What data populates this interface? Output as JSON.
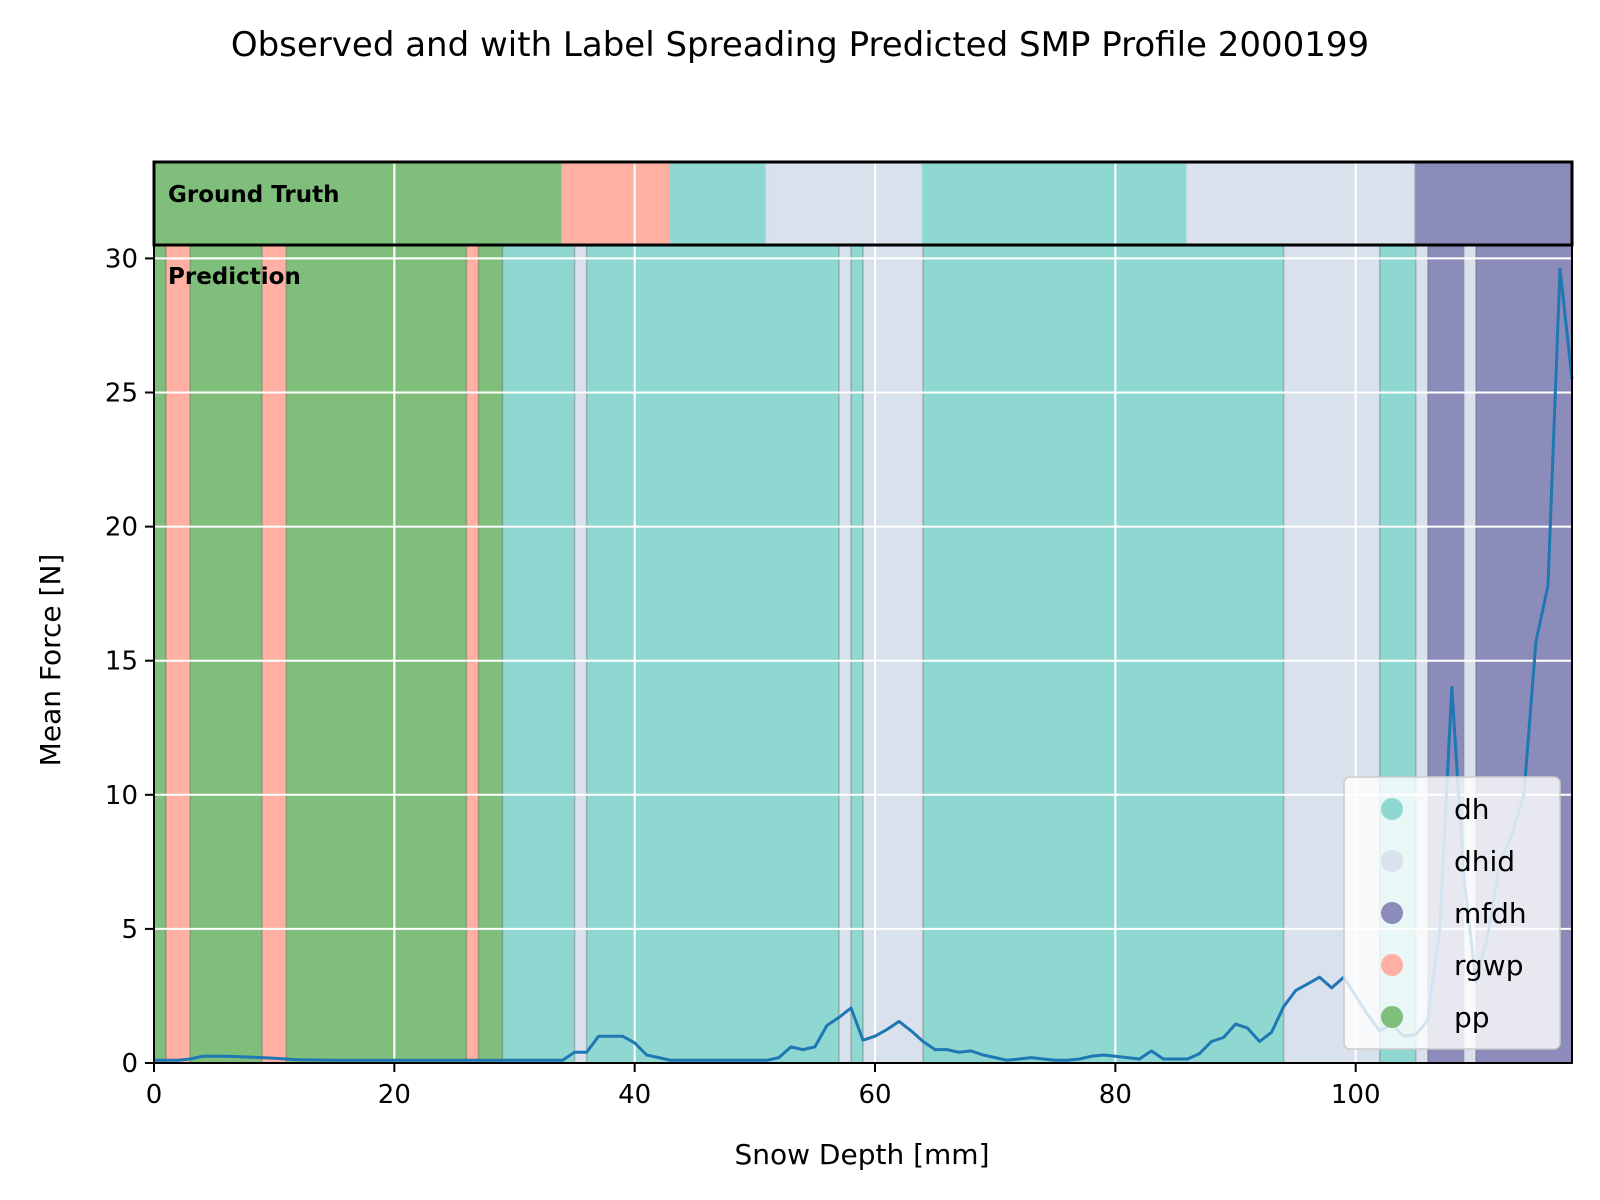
{
  "chart_data": {
    "type": "line",
    "title": "Observed and with Label Spreading Predicted SMP Profile 2000199",
    "xlabel": "Snow Depth [mm]",
    "ylabel": "Mean Force [N]",
    "xlim": [
      0,
      118
    ],
    "ylim": [
      0,
      30.5
    ],
    "xticks": [
      0,
      20,
      40,
      60,
      80,
      100
    ],
    "yticks": [
      0,
      5,
      10,
      15,
      20,
      25,
      30
    ],
    "grid": true,
    "legend_position": "lower-right",
    "classes": [
      {
        "name": "dh",
        "color": "#8fd8d2"
      },
      {
        "name": "dhid",
        "color": "#d9e1ec"
      },
      {
        "name": "mfdh",
        "color": "#8b8cb9"
      },
      {
        "name": "rgwp",
        "color": "#ffb0a3"
      },
      {
        "name": "pp",
        "color": "#7fbf7b"
      }
    ],
    "ground_truth_label": "Ground Truth",
    "prediction_label": "Prediction",
    "ground_truth_segments": [
      {
        "start": 0,
        "end": 34,
        "label": "pp"
      },
      {
        "start": 34,
        "end": 43,
        "label": "rgwp"
      },
      {
        "start": 43,
        "end": 51,
        "label": "dh"
      },
      {
        "start": 51,
        "end": 64,
        "label": "dhid"
      },
      {
        "start": 64,
        "end": 86,
        "label": "dh"
      },
      {
        "start": 86,
        "end": 105,
        "label": "dhid"
      },
      {
        "start": 105,
        "end": 118,
        "label": "mfdh"
      }
    ],
    "prediction_segments": [
      {
        "start": 0,
        "end": 1,
        "label": "pp"
      },
      {
        "start": 1,
        "end": 3,
        "label": "rgwp"
      },
      {
        "start": 3,
        "end": 9,
        "label": "pp"
      },
      {
        "start": 9,
        "end": 11,
        "label": "rgwp"
      },
      {
        "start": 11,
        "end": 26,
        "label": "pp"
      },
      {
        "start": 26,
        "end": 27,
        "label": "rgwp"
      },
      {
        "start": 27,
        "end": 29,
        "label": "pp"
      },
      {
        "start": 29,
        "end": 35,
        "label": "dh"
      },
      {
        "start": 35,
        "end": 36,
        "label": "dhid"
      },
      {
        "start": 36,
        "end": 57,
        "label": "dh"
      },
      {
        "start": 57,
        "end": 58,
        "label": "dhid"
      },
      {
        "start": 58,
        "end": 59,
        "label": "dh"
      },
      {
        "start": 59,
        "end": 64,
        "label": "dhid"
      },
      {
        "start": 64,
        "end": 94,
        "label": "dh"
      },
      {
        "start": 94,
        "end": 102,
        "label": "dhid"
      },
      {
        "start": 102,
        "end": 105,
        "label": "dh"
      },
      {
        "start": 105,
        "end": 106,
        "label": "dhid"
      },
      {
        "start": 106,
        "end": 109,
        "label": "mfdh"
      },
      {
        "start": 109,
        "end": 110,
        "label": "dhid"
      },
      {
        "start": 110,
        "end": 118,
        "label": "mfdh"
      }
    ],
    "series": [
      {
        "color": "#1f77b4",
        "x": [
          0,
          2,
          3,
          4,
          5,
          6,
          8,
          10,
          12,
          15,
          20,
          25,
          30,
          34,
          35,
          36,
          37,
          38,
          39,
          40,
          41,
          42,
          43,
          44,
          46,
          48,
          50,
          51,
          52,
          53,
          54,
          55,
          56,
          57,
          58,
          59,
          60,
          61,
          62,
          63,
          64,
          65,
          66,
          67,
          68,
          69,
          70,
          71,
          72,
          73,
          74,
          75,
          76,
          77,
          78,
          79,
          80,
          81,
          82,
          83,
          84,
          85,
          86,
          87,
          88,
          89,
          90,
          91,
          92,
          93,
          94,
          95,
          96,
          97,
          98,
          99,
          100,
          101,
          102,
          103,
          104,
          105,
          106,
          107,
          108,
          109,
          110,
          111,
          112,
          113,
          114,
          115,
          116,
          117,
          118
        ],
        "y": [
          0.1,
          0.1,
          0.15,
          0.25,
          0.25,
          0.25,
          0.22,
          0.18,
          0.12,
          0.1,
          0.1,
          0.1,
          0.1,
          0.1,
          0.4,
          0.4,
          1.0,
          1.0,
          1.0,
          0.75,
          0.3,
          0.2,
          0.1,
          0.1,
          0.1,
          0.1,
          0.1,
          0.1,
          0.2,
          0.6,
          0.5,
          0.6,
          1.4,
          1.7,
          2.05,
          0.85,
          1.0,
          1.25,
          1.55,
          1.2,
          0.8,
          0.5,
          0.5,
          0.4,
          0.45,
          0.3,
          0.2,
          0.1,
          0.15,
          0.2,
          0.15,
          0.1,
          0.1,
          0.15,
          0.25,
          0.3,
          0.25,
          0.2,
          0.15,
          0.45,
          0.15,
          0.15,
          0.15,
          0.35,
          0.8,
          0.95,
          1.45,
          1.3,
          0.8,
          1.15,
          2.1,
          2.7,
          2.95,
          3.2,
          2.8,
          3.2,
          2.5,
          1.8,
          1.2,
          1.45,
          1.0,
          1.05,
          1.6,
          5.0,
          14.0,
          7.0,
          3.0,
          4.8,
          7.5,
          8.5,
          10.0,
          15.7,
          17.8,
          29.6,
          25.5
        ]
      }
    ]
  }
}
